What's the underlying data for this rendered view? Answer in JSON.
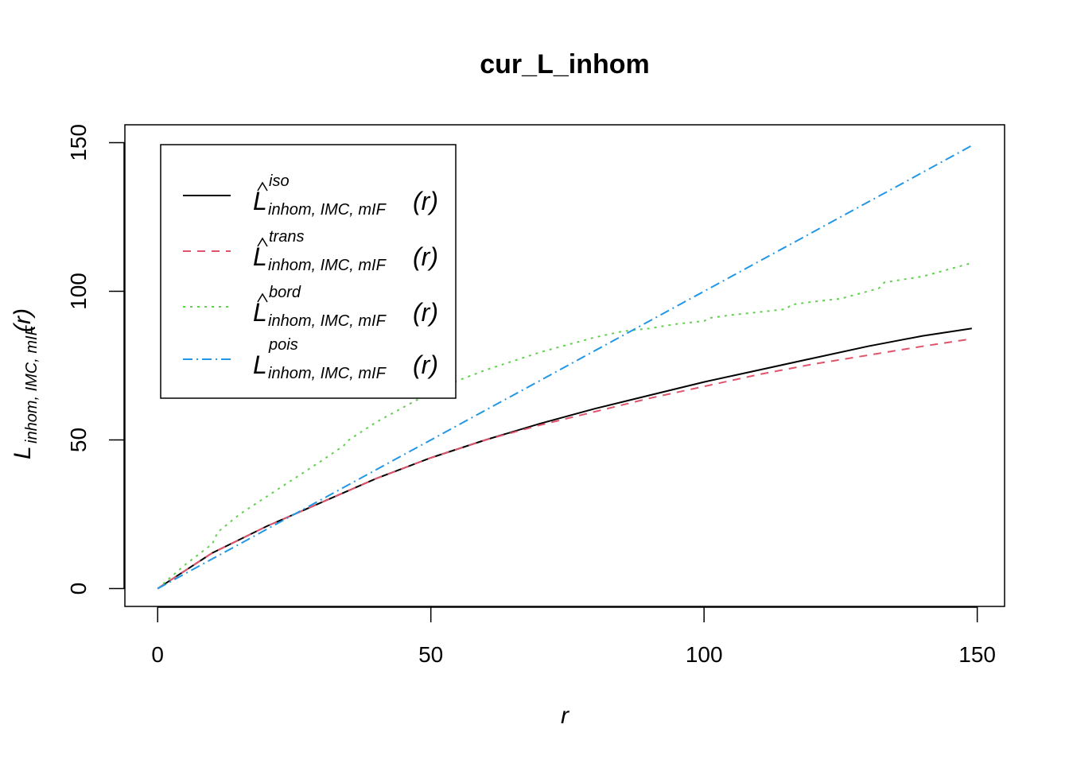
{
  "chart_data": {
    "type": "line",
    "title": "cur_L_inhom",
    "xlabel": "r",
    "ylabel": {
      "base": "L",
      "sub": "inhom, IMC, mIF",
      "arg": "(r)"
    },
    "xlim": [
      -6,
      155
    ],
    "ylim": [
      -6,
      156
    ],
    "x_ticks": [
      0,
      50,
      100,
      150
    ],
    "y_ticks": [
      0,
      50,
      100,
      150
    ],
    "grid": false,
    "legend_position": "top-left",
    "series": [
      {
        "name": "iso",
        "legend": {
          "base": "L",
          "hat": true,
          "sup": "iso",
          "sub": "inhom, IMC, mIF",
          "arg": "(r)"
        },
        "color": "#000000",
        "dash": "none",
        "x": [
          0,
          5,
          10,
          20,
          30,
          40,
          50,
          60,
          70,
          80,
          90,
          100,
          110,
          120,
          130,
          140,
          149
        ],
        "y": [
          0,
          6,
          12,
          21,
          29,
          37,
          44,
          50,
          55.5,
          60.5,
          65,
          69.5,
          73.5,
          77.5,
          81.5,
          85,
          87.5
        ]
      },
      {
        "name": "trans",
        "legend": {
          "base": "L",
          "hat": true,
          "sup": "trans",
          "sub": "inhom, IMC, mIF",
          "arg": "(r)"
        },
        "color": "#DF536B",
        "dash": "10,8",
        "x": [
          0,
          5,
          10,
          20,
          30,
          40,
          50,
          60,
          70,
          80,
          90,
          100,
          110,
          120,
          130,
          140,
          149
        ],
        "y": [
          0,
          6,
          12,
          21,
          29,
          37,
          44,
          50,
          55,
          59.5,
          64,
          68,
          72,
          75.5,
          78.5,
          81.5,
          84
        ]
      },
      {
        "name": "bord",
        "legend": {
          "base": "L",
          "hat": true,
          "sup": "bord",
          "sub": "inhom, IMC, mIF",
          "arg": "(r)"
        },
        "color": "#61D04F",
        "dash": "3,6",
        "x": [
          0,
          5,
          10,
          11,
          15,
          20,
          25,
          30,
          34,
          35,
          40,
          45,
          50,
          55,
          60,
          65,
          70,
          75,
          80,
          85,
          90,
          95,
          100,
          101,
          105,
          110,
          115,
          116,
          120,
          125,
          130,
          132,
          133,
          140,
          145,
          149
        ],
        "y": [
          0,
          8,
          15,
          19,
          25,
          31,
          37,
          43,
          48,
          50,
          56,
          61,
          66,
          70,
          73.5,
          76.5,
          79.5,
          82,
          84.5,
          86.5,
          87.5,
          89,
          90,
          91,
          92,
          93,
          94,
          95.5,
          96.5,
          97.5,
          100,
          101,
          103,
          105,
          107.5,
          109.5
        ]
      },
      {
        "name": "pois",
        "legend": {
          "base": "L",
          "hat": false,
          "sup": "pois",
          "sub": "inhom, IMC, mIF",
          "arg": "(r)"
        },
        "color": "#2297E6",
        "dash": "12,5,2,5",
        "x": [
          0,
          149
        ],
        "y": [
          0,
          149
        ]
      }
    ]
  }
}
